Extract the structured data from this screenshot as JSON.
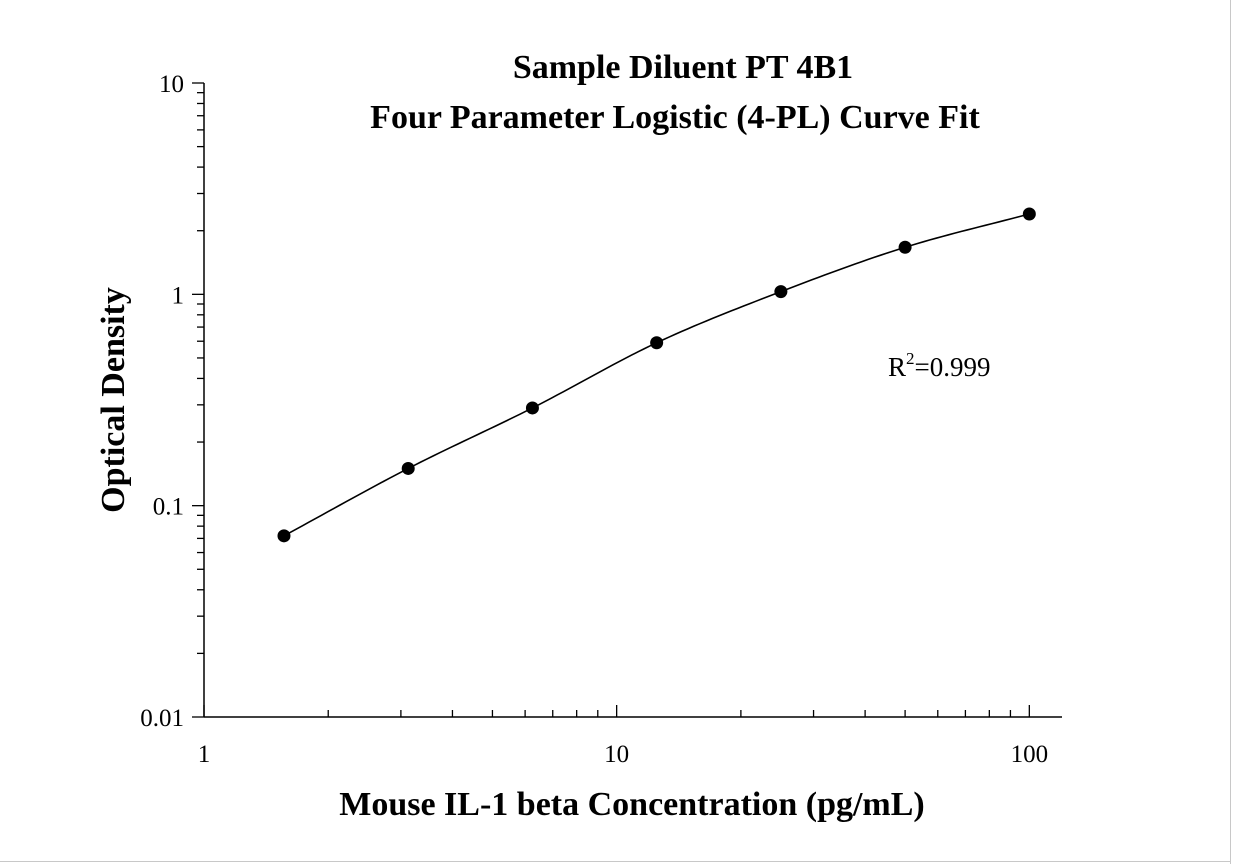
{
  "chart_data": {
    "type": "scatter",
    "title": [
      "Sample Diluent PT 4B1",
      "Four Parameter Logistic (4-PL) Curve Fit"
    ],
    "xlabel": "Mouse IL-1 beta Concentration (pg/mL)",
    "ylabel": "Optical Density",
    "xscale": "log",
    "yscale": "log",
    "xlim": [
      1,
      120
    ],
    "ylim": [
      0.01,
      10
    ],
    "x_ticks": [
      {
        "value": 1,
        "label": "1"
      },
      {
        "value": 10,
        "label": "10"
      },
      {
        "value": 100,
        "label": "100"
      }
    ],
    "y_ticks": [
      {
        "value": 0.01,
        "label": "0.01"
      },
      {
        "value": 0.1,
        "label": "0.1"
      },
      {
        "value": 1,
        "label": "1"
      },
      {
        "value": 10,
        "label": "10"
      }
    ],
    "grid": false,
    "legend": "none",
    "series": [
      {
        "marker": "filled-circle",
        "color": "#000000",
        "x": [
          1.5625,
          3.125,
          6.25,
          12.5,
          25,
          50,
          100
        ],
        "y": [
          0.072,
          0.15,
          0.29,
          0.59,
          1.03,
          1.67,
          2.4
        ]
      }
    ],
    "fit_curve": {
      "model": "4PL",
      "color": "#000000",
      "x_range": [
        1.5625,
        100
      ]
    },
    "annotation": {
      "base": "R",
      "superscript": "2",
      "value_text": "=0.999"
    }
  }
}
